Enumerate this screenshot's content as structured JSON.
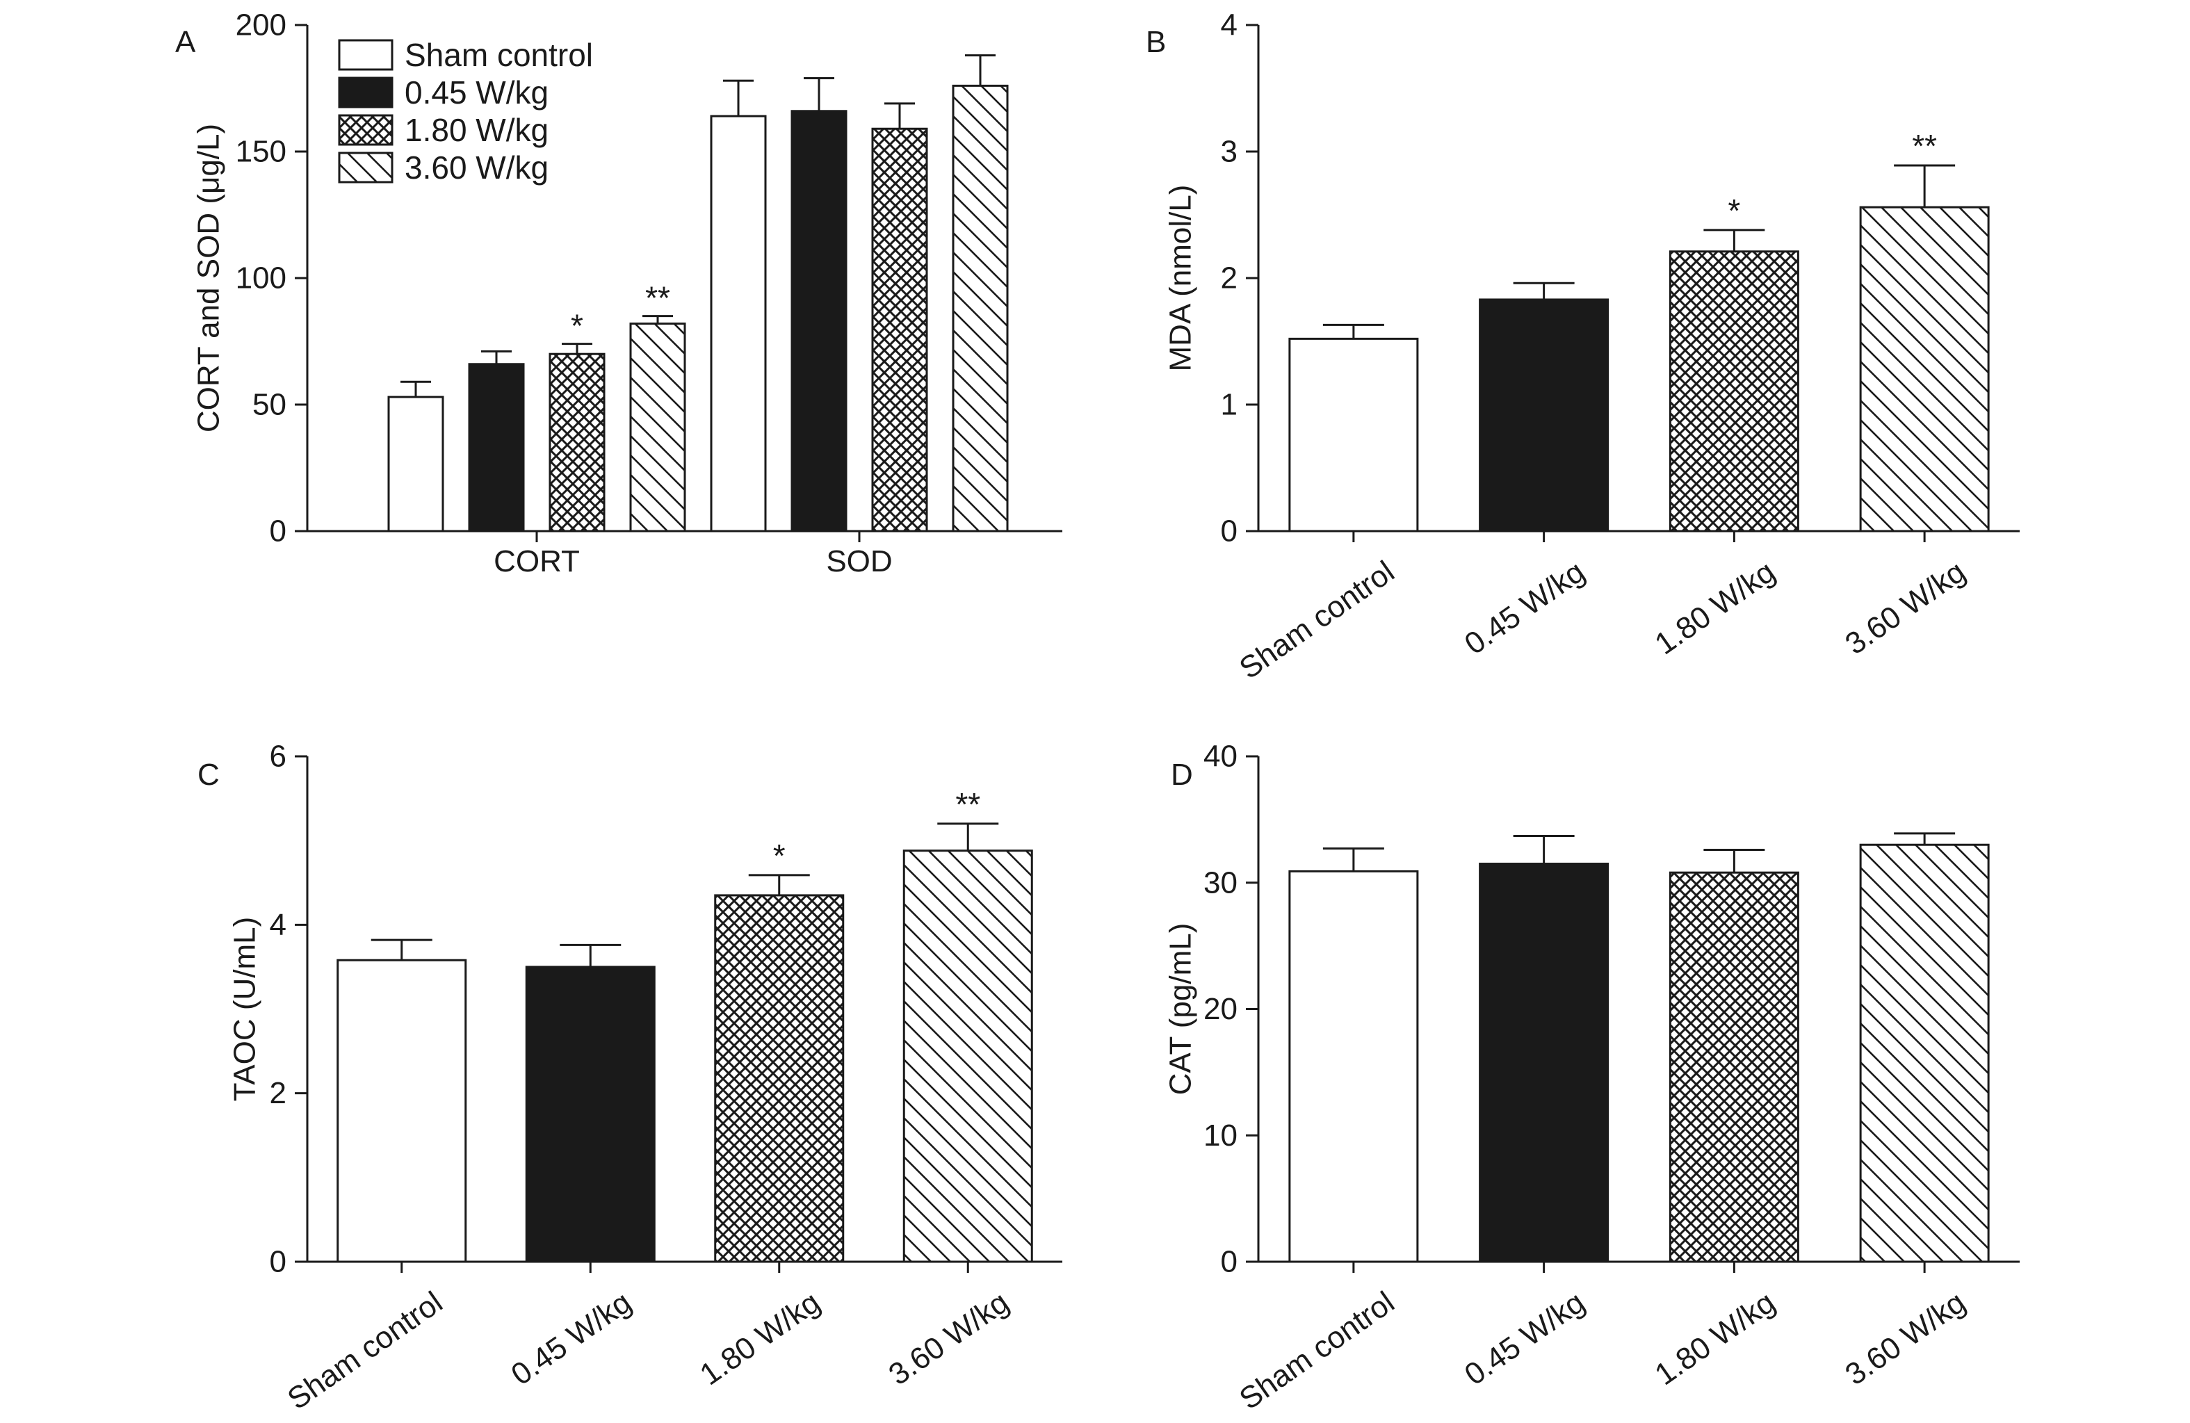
{
  "chart_data": [
    {
      "panel": "A",
      "type": "bar",
      "ylabel": "CORT and SOD (μg/L)",
      "ylim": [
        0,
        200
      ],
      "yticks": [
        0,
        50,
        100,
        150,
        200
      ],
      "categories": [
        "CORT",
        "SOD"
      ],
      "series": [
        {
          "name": "Sham control",
          "fill": "white",
          "values": [
            53,
            164
          ],
          "errors": [
            6,
            14
          ],
          "sig": [
            "",
            ""
          ]
        },
        {
          "name": "0.45 W/kg",
          "fill": "black",
          "values": [
            66,
            166
          ],
          "errors": [
            5,
            13
          ],
          "sig": [
            "",
            ""
          ]
        },
        {
          "name": "1.80 W/kg",
          "fill": "cross",
          "values": [
            70,
            159
          ],
          "errors": [
            4,
            10
          ],
          "sig": [
            "*",
            ""
          ]
        },
        {
          "name": "3.60 W/kg",
          "fill": "diag",
          "values": [
            82,
            176
          ],
          "errors": [
            3,
            12
          ],
          "sig": [
            "**",
            ""
          ]
        }
      ],
      "legend": "top-left"
    },
    {
      "panel": "B",
      "type": "bar",
      "ylabel": "MDA (nmol/L)",
      "ylim": [
        0,
        4
      ],
      "yticks": [
        0,
        1,
        2,
        3,
        4
      ],
      "categories": [
        "Sham control",
        "0.45 W/kg",
        "1.80 W/kg",
        "3.60 W/kg"
      ],
      "fills": [
        "white",
        "black",
        "cross",
        "diag"
      ],
      "values": [
        1.52,
        1.83,
        2.21,
        2.56
      ],
      "errors": [
        0.11,
        0.13,
        0.17,
        0.33
      ],
      "sig": [
        "",
        "",
        "*",
        "**"
      ]
    },
    {
      "panel": "C",
      "type": "bar",
      "ylabel": "TAOC (U/mL)",
      "ylim": [
        0,
        6
      ],
      "yticks": [
        0,
        2,
        4,
        6
      ],
      "categories": [
        "Sham control",
        "0.45 W/kg",
        "1.80 W/kg",
        "3.60 W/kg"
      ],
      "fills": [
        "white",
        "black",
        "cross",
        "diag"
      ],
      "values": [
        3.58,
        3.5,
        4.35,
        4.88
      ],
      "errors": [
        0.24,
        0.26,
        0.24,
        0.32
      ],
      "sig": [
        "",
        "",
        "*",
        "**"
      ]
    },
    {
      "panel": "D",
      "type": "bar",
      "ylabel": "CAT (pg/mL)",
      "ylim": [
        0,
        40
      ],
      "yticks": [
        0,
        10,
        20,
        30,
        40
      ],
      "categories": [
        "Sham control",
        "0.45 W/kg",
        "1.80 W/kg",
        "3.60 W/kg"
      ],
      "fills": [
        "white",
        "black",
        "cross",
        "diag"
      ],
      "values": [
        30.9,
        31.5,
        30.8,
        33.0
      ],
      "errors": [
        1.8,
        2.2,
        1.8,
        0.9
      ],
      "sig": [
        "",
        "",
        "",
        ""
      ]
    }
  ],
  "colors": {
    "ink": "#1a1a1a",
    "background": "#ffffff"
  }
}
